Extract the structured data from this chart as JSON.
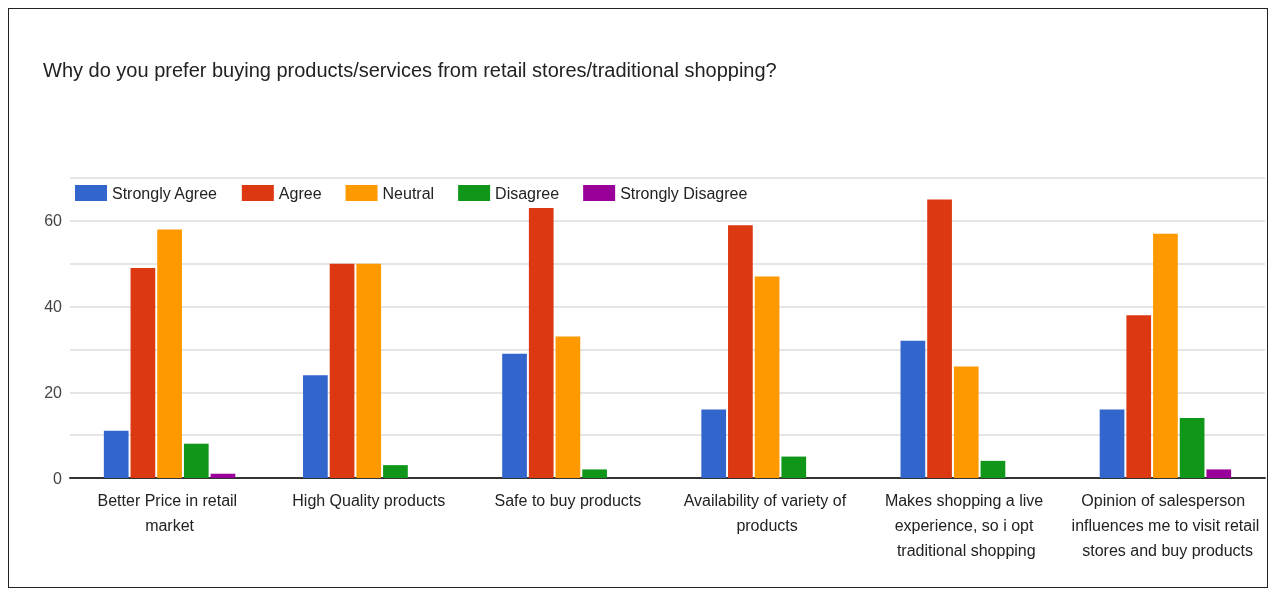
{
  "chart_data": {
    "type": "bar",
    "title": "Why do you prefer buying products/services from retail stores/traditional shopping?",
    "categories": [
      "Better Price in retail market",
      "High Quality products",
      "Safe to buy products",
      "Availability of variety of products",
      "Makes shopping a live experience, so i opt traditional shopping",
      "Opinion of salesperson influences me to visit retail stores and buy products"
    ],
    "series": [
      {
        "name": "Strongly Agree",
        "color": "#3366cc",
        "values": [
          11,
          24,
          29,
          16,
          32,
          16
        ]
      },
      {
        "name": "Agree",
        "color": "#dc3912",
        "values": [
          49,
          50,
          63,
          59,
          65,
          38
        ]
      },
      {
        "name": "Neutral",
        "color": "#ff9900",
        "values": [
          58,
          50,
          33,
          47,
          26,
          57
        ]
      },
      {
        "name": "Disagree",
        "color": "#109618",
        "values": [
          8,
          3,
          2,
          5,
          4,
          14
        ]
      },
      {
        "name": "Strongly Disagree",
        "color": "#990099",
        "values": [
          1,
          0,
          0,
          0,
          0,
          2
        ]
      }
    ],
    "ylim": [
      0,
      70
    ],
    "yticks": [
      0,
      {
        "value": 10,
        "label": null
      },
      20,
      {
        "value": 30,
        "label": null
      },
      40,
      {
        "value": 50,
        "label": null
      },
      60,
      {
        "value": 70,
        "label": null
      }
    ],
    "grid": true,
    "legend": "top left"
  }
}
